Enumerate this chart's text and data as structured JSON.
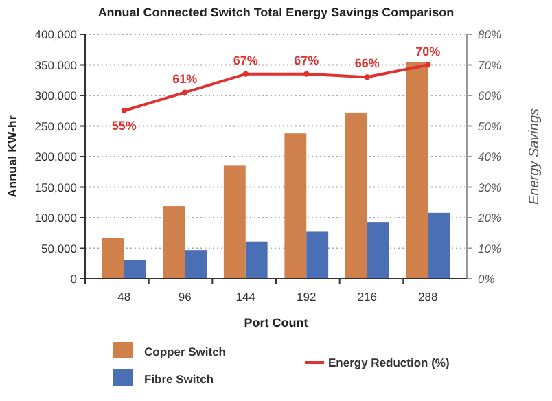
{
  "chart_data": {
    "type": "bar",
    "title": "Annual Connected Switch Total Energy Savings Comparison",
    "xlabel": "Port Count",
    "ylabel": "Annual  KW-hr",
    "y2label": "Energy Savings",
    "categories": [
      "48",
      "96",
      "144",
      "192",
      "216",
      "288"
    ],
    "series": [
      {
        "name": "Copper Switch",
        "color": "#d0804a",
        "values": [
          67000,
          119000,
          185000,
          238000,
          272000,
          355000
        ]
      },
      {
        "name": "Fibre Switch",
        "color": "#4a6fb5",
        "values": [
          31000,
          47000,
          61000,
          77000,
          92000,
          108000
        ]
      },
      {
        "name": "Energy Reduction (%)",
        "type": "line",
        "axis": "y2",
        "color": "#e03030",
        "marker": "circle",
        "values": [
          55,
          61,
          67,
          67,
          66,
          70
        ],
        "value_labels": [
          "55%",
          "61%",
          "67%",
          "67%",
          "66%",
          "70%"
        ]
      }
    ],
    "ylim": [
      0,
      400000
    ],
    "yticks": [
      {
        "value": 0,
        "label": "0"
      },
      {
        "value": 50000,
        "label": "50,000"
      },
      {
        "value": 100000,
        "label": "100,000"
      },
      {
        "value": 150000,
        "label": "150,000"
      },
      {
        "value": 200000,
        "label": "200,000"
      },
      {
        "value": 250000,
        "label": "250,000"
      },
      {
        "value": 300000,
        "label": "300,000"
      },
      {
        "value": 350000,
        "label": "350,000"
      },
      {
        "value": 400000,
        "label": "400,000"
      }
    ],
    "y2lim": [
      0,
      80
    ],
    "y2ticks": [
      {
        "value": 0,
        "label": "0%"
      },
      {
        "value": 10,
        "label": "10%"
      },
      {
        "value": 20,
        "label": "20%"
      },
      {
        "value": 30,
        "label": "30%"
      },
      {
        "value": 40,
        "label": "40%"
      },
      {
        "value": 50,
        "label": "50%"
      },
      {
        "value": 60,
        "label": "60%"
      },
      {
        "value": 70,
        "label": "70%"
      },
      {
        "value": 80,
        "label": "80%"
      }
    ],
    "grid": "y",
    "legend": "bottom"
  }
}
